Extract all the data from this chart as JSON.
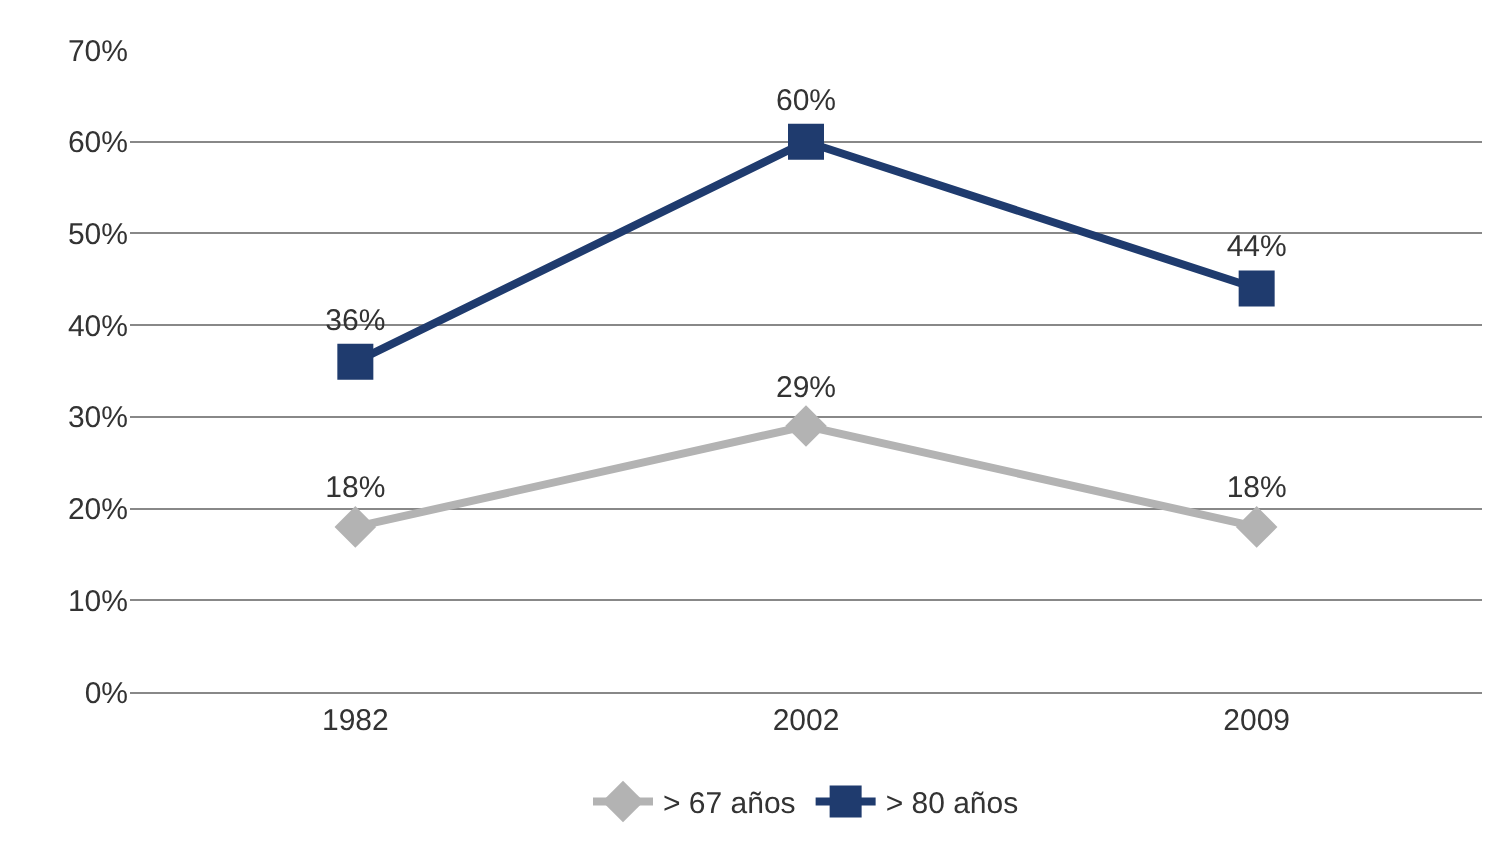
{
  "chart_data": {
    "type": "line",
    "categories": [
      "1982",
      "2002",
      "2009"
    ],
    "series": [
      {
        "name": "> 67 años",
        "color": "#b3b3b3",
        "marker": "diamond",
        "values": [
          18,
          29,
          18
        ],
        "value_labels": [
          "18%",
          "29%",
          "18%"
        ]
      },
      {
        "name": "> 80 años",
        "color": "#1f3b6e",
        "marker": "square",
        "values": [
          36,
          60,
          44
        ],
        "value_labels": [
          "36%",
          "60%",
          "44%"
        ]
      }
    ],
    "ylim": [
      0,
      70
    ],
    "yticks": [
      {
        "value": 0,
        "label": "0%"
      },
      {
        "value": 10,
        "label": "10%"
      },
      {
        "value": 20,
        "label": "20%"
      },
      {
        "value": 30,
        "label": "30%"
      },
      {
        "value": 40,
        "label": "40%"
      },
      {
        "value": 50,
        "label": "50%"
      },
      {
        "value": 60,
        "label": "60%"
      },
      {
        "value": 70,
        "label": "70%"
      }
    ],
    "grid": "y",
    "legend": "bottom",
    "line_style": "solid"
  }
}
